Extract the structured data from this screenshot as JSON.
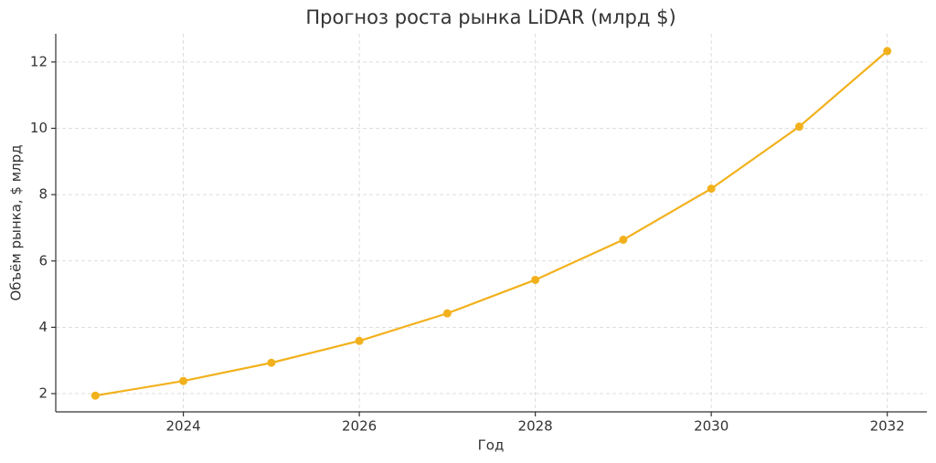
{
  "chart_data": {
    "type": "line",
    "title": "Прогноз роста рынка LiDAR (млрд $)",
    "x_label": "Год",
    "y_label": "Объём рынка, $ млрд",
    "x": [
      2023,
      2024,
      2025,
      2026,
      2027,
      2028,
      2029,
      2030,
      2031,
      2032
    ],
    "series": [
      {
        "color": "#f2b11c",
        "values": [
          1.94,
          2.38,
          2.93,
          3.59,
          4.42,
          5.43,
          6.64,
          8.18,
          10.05,
          12.33
        ]
      }
    ],
    "xlim": [
      2022.55,
      2032.45
    ],
    "xticks": [
      2024,
      2026,
      2028,
      2030,
      2032
    ],
    "ylim": [
      1.45,
      12.85
    ],
    "yticks": [
      2,
      4,
      6,
      8,
      10,
      12
    ],
    "grid": true
  }
}
